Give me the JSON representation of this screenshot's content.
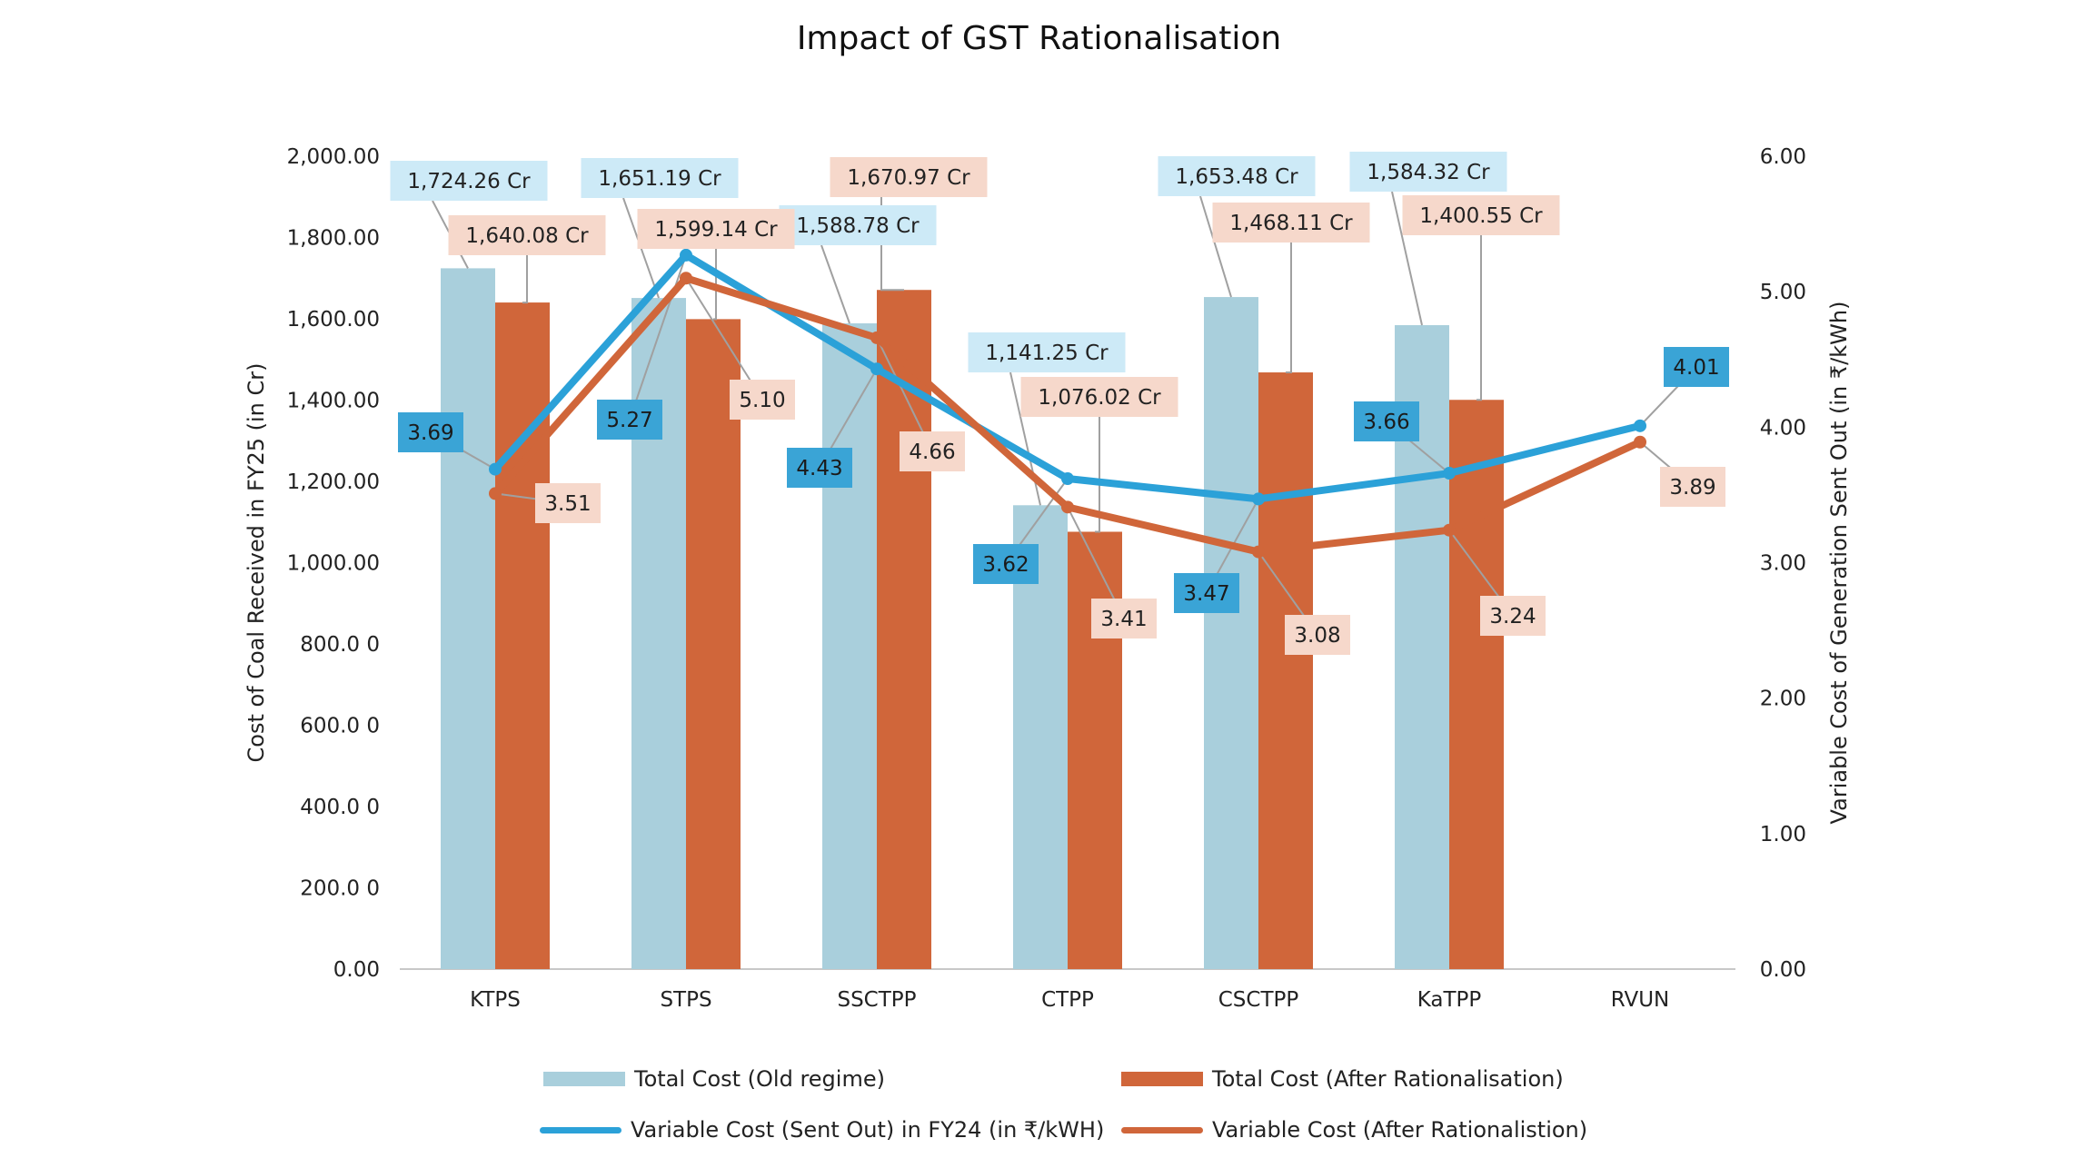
{
  "chart_data": {
    "type": "bar",
    "title": "Impact of GST Rationalisation",
    "categories": [
      "KTPS",
      "STPS",
      "SSCTPP",
      "CTPP",
      "CSCTPP",
      "KaTPP",
      "RVUN"
    ],
    "series": [
      {
        "name": "Total Cost (Old regime)",
        "type": "bar",
        "axis": "left",
        "color": "#a9cfdc",
        "values": [
          1724.26,
          1651.19,
          1588.78,
          1141.25,
          1653.48,
          1584.32,
          null
        ],
        "labels": [
          "1,724.26 Cr",
          "1,651.19 Cr",
          "1,588.78 Cr",
          "1,141.25 Cr",
          "1,653.48 Cr",
          "1,584.32 Cr",
          ""
        ]
      },
      {
        "name": "Total Cost (After Rationalisation)",
        "type": "bar",
        "axis": "left",
        "color": "#d0663a",
        "values": [
          1640.08,
          1599.14,
          1670.97,
          1076.02,
          1468.11,
          1400.55,
          null
        ],
        "labels": [
          "1,640.08 Cr",
          "1,599.14 Cr",
          "1,670.97 Cr",
          "1,076.02 Cr",
          "1,468.11 Cr",
          "1,400.55 Cr",
          ""
        ]
      },
      {
        "name": "Variable Cost (Sent Out) in FY24 (in ₹/kWH)",
        "type": "line",
        "axis": "right",
        "color": "#2ba1d8",
        "values": [
          3.69,
          5.27,
          4.43,
          3.62,
          3.47,
          3.66,
          4.01
        ],
        "labels": [
          "3.69",
          "5.27",
          "4.43",
          "3.62",
          "3.47",
          "3.66",
          "4.01"
        ]
      },
      {
        "name": "Variable Cost (After Rationalistion)",
        "type": "line",
        "axis": "right",
        "color": "#d0663a",
        "values": [
          3.51,
          5.1,
          4.66,
          3.41,
          3.08,
          3.24,
          3.89
        ],
        "labels": [
          "3.51",
          "5.10",
          "4.66",
          "3.41",
          "3.08",
          "3.24",
          "3.89"
        ]
      }
    ],
    "y_left": {
      "label": "Cost of Coal Received in FY25 (in Cr)",
      "range": [
        0,
        2000
      ],
      "tick_values": [
        0,
        200,
        400,
        600,
        800,
        1000,
        1200,
        1400,
        1600,
        1800,
        2000
      ],
      "tick_labels": [
        "0.00",
        "200.0 0",
        "400.0 0",
        "600.0 0",
        "800.0 0",
        "1,000.00",
        "1,200.00",
        "1,400.00",
        "1,600.00",
        "1,800.00",
        "2,000.00"
      ]
    },
    "y_right": {
      "label": "Variable Cost of Generation Sent Out (in ₹/kWh)",
      "range": [
        0,
        6
      ],
      "tick_values": [
        0,
        1,
        2,
        3,
        4,
        5,
        6
      ],
      "tick_labels": [
        "0.00",
        "1.00",
        "2.00",
        "3.00",
        "4.00",
        "5.00",
        "6.00"
      ]
    },
    "grid": false,
    "legend_position": "bottom",
    "label_box_colors": {
      "old_bar": "#cdeaf7",
      "new_bar": "#f6d8cb",
      "old_line": "#3aa4d6",
      "new_line": "#f6d8cb"
    }
  }
}
